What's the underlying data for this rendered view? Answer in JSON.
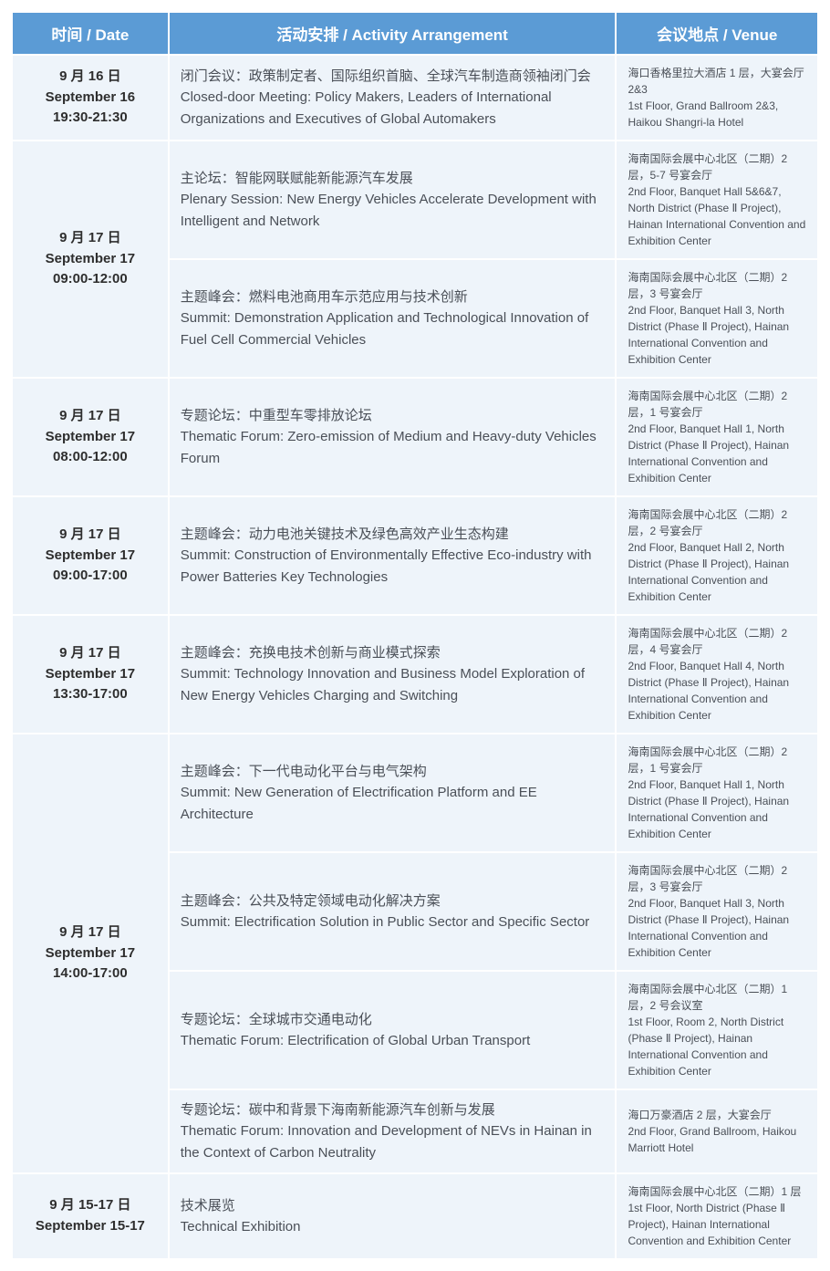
{
  "header": {
    "date": "时间 / Date",
    "activity": "活动安排 / Activity Arrangement",
    "venue": "会议地点 / Venue"
  },
  "rows": [
    {
      "date_cn": "9 月 16 日",
      "date_en": "September 16",
      "time": "19:30-21:30",
      "act_cn": "闭门会议：政策制定者、国际组织首脑、全球汽车制造商领袖闭门会",
      "act_en": "Closed-door Meeting: Policy Makers, Leaders of International Organizations and Executives of Global Automakers",
      "ven_cn": "海口香格里拉大酒店 1 层，大宴会厅 2&3",
      "ven_en": "1st Floor, Grand Ballroom 2&3, Haikou Shangri-la Hotel"
    },
    {
      "date_cn": "9 月 17 日",
      "date_en": "September 17",
      "time": "09:00-12:00",
      "act_cn": "主论坛：智能网联赋能新能源汽车发展",
      "act_en": "Plenary Session: New Energy Vehicles Accelerate Development with Intelligent and Network",
      "ven_cn": "海南国际会展中心北区（二期）2 层，5-7 号宴会厅",
      "ven_en": "2nd Floor, Banquet Hall 5&6&7, North District (Phase Ⅱ Project), Hainan International Convention and Exhibition Center"
    },
    {
      "act_cn": "主题峰会：燃料电池商用车示范应用与技术创新",
      "act_en": "Summit: Demonstration Application and Technological Innovation of Fuel Cell Commercial Vehicles",
      "ven_cn": "海南国际会展中心北区（二期）2 层，3 号宴会厅",
      "ven_en": "2nd Floor, Banquet Hall 3, North District (Phase Ⅱ Project), Hainan International Convention and Exhibition Center"
    },
    {
      "date_cn": "9 月 17 日",
      "date_en": "September 17",
      "time": "08:00-12:00",
      "act_cn": "专题论坛：中重型车零排放论坛",
      "act_en": "Thematic Forum: Zero-emission of Medium and Heavy-duty Vehicles Forum",
      "ven_cn": "海南国际会展中心北区（二期）2 层，1 号宴会厅",
      "ven_en": "2nd Floor, Banquet Hall 1, North District (Phase Ⅱ Project), Hainan International Convention and Exhibition Center"
    },
    {
      "date_cn": "9 月 17 日",
      "date_en": "September 17",
      "time": "09:00-17:00",
      "act_cn": "主题峰会：动力电池关键技术及绿色高效产业生态构建",
      "act_en": "Summit: Construction of Environmentally Effective Eco-industry with Power Batteries Key Technologies",
      "ven_cn": "海南国际会展中心北区（二期）2 层，2 号宴会厅",
      "ven_en": "2nd Floor, Banquet Hall 2, North District (Phase Ⅱ Project), Hainan International Convention and Exhibition Center"
    },
    {
      "date_cn": "9 月 17 日",
      "date_en": "September 17",
      "time": "13:30-17:00",
      "act_cn": "主题峰会：充换电技术创新与商业模式探索",
      "act_en": "Summit: Technology Innovation and Business Model Exploration of New Energy Vehicles Charging and Switching",
      "ven_cn": "海南国际会展中心北区（二期）2 层，4 号宴会厅",
      "ven_en": "2nd Floor, Banquet Hall 4, North District (Phase Ⅱ Project), Hainan International Convention and Exhibition Center"
    },
    {
      "date_cn": "9 月 17 日",
      "date_en": "September 17",
      "time": "14:00-17:00",
      "act_cn": "主题峰会：下一代电动化平台与电气架构",
      "act_en": "Summit: New Generation of Electrification Platform and EE Architecture",
      "ven_cn": "海南国际会展中心北区（二期）2 层，1 号宴会厅",
      "ven_en": "2nd Floor, Banquet Hall 1, North District (Phase Ⅱ Project), Hainan International Convention and Exhibition Center"
    },
    {
      "act_cn": "主题峰会：公共及特定领域电动化解决方案",
      "act_en": "Summit: Electrification Solution in Public Sector and Specific Sector",
      "ven_cn": "海南国际会展中心北区（二期）2 层，3 号宴会厅",
      "ven_en": "2nd Floor, Banquet Hall 3, North District (Phase Ⅱ Project), Hainan International Convention and Exhibition Center"
    },
    {
      "act_cn": "专题论坛：全球城市交通电动化",
      "act_en": "Thematic Forum: Electrification of Global Urban Transport",
      "ven_cn": "海南国际会展中心北区（二期）1 层，2 号会议室",
      "ven_en": "1st Floor, Room 2, North District (Phase Ⅱ Project), Hainan International Convention and Exhibition Center"
    },
    {
      "act_cn": "专题论坛：碳中和背景下海南新能源汽车创新与发展",
      "act_en": "Thematic Forum: Innovation and Development of NEVs in Hainan in the Context of Carbon Neutrality",
      "ven_cn": "海口万豪酒店 2 层，大宴会厅",
      "ven_en": "2nd Floor, Grand Ballroom, Haikou Marriott Hotel"
    },
    {
      "date_cn": "9 月 15-17 日",
      "date_en": "September 15-17",
      "time": "",
      "act_cn": "技术展览",
      "act_en": "Technical Exhibition",
      "ven_cn": "海南国际会展中心北区（二期）1 层",
      "ven_en": "1st Floor,  North District (Phase Ⅱ Project), Hainan International Convention and Exhibition Center"
    }
  ],
  "layout": {
    "header_bg": "#5b9bd5",
    "cell_bg": "#eef4fa",
    "header_fg": "#ffffff",
    "body_fg": "#4a4f57"
  }
}
